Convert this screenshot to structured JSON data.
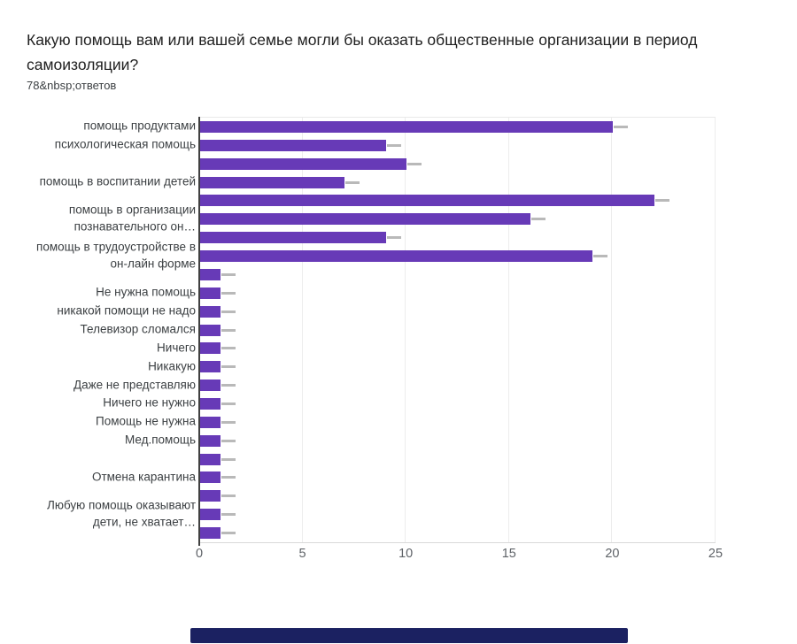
{
  "page": {
    "background": "#ffffff"
  },
  "chart_data": {
    "type": "bar",
    "orientation": "horizontal",
    "title": "Какую помощь вам или вашей семье могли бы оказать общественные организации в период самоизоляции?",
    "subtitle": "78&nbsp;ответов",
    "categories": [
      "помощь продуктами",
      "психологическая помощь",
      "",
      "помощь в воспитании детей",
      "",
      "помощь в организации\nпознавательного он…",
      "",
      "помощь в трудоустройстве в\nон-лайн форме",
      "",
      "Не нужна помощь",
      "никакой помощи не надо",
      "Телевизор сломался",
      "Ничего",
      "Никакую",
      "Даже не представляю",
      "Ничего не нужно",
      "Помощь не нужна",
      "Мед.помощь",
      "",
      "Отмена карантина",
      "",
      "Любую помощь оказывают\nдети, не хватает…",
      ""
    ],
    "values": [
      20,
      9,
      10,
      7,
      22,
      16,
      9,
      19,
      1,
      1,
      1,
      1,
      1,
      1,
      1,
      1,
      1,
      1,
      1,
      1,
      1,
      1,
      1
    ],
    "xlabel": "",
    "ylabel": "",
    "xlim": [
      0,
      25
    ],
    "x_ticks": [
      0,
      5,
      10,
      15,
      20,
      25
    ],
    "grid": true,
    "legend": "none",
    "bar_color": "#673ab7",
    "whisker_color": "#b9b9b9"
  },
  "bottom_bar": {
    "color": "#1b2161"
  }
}
